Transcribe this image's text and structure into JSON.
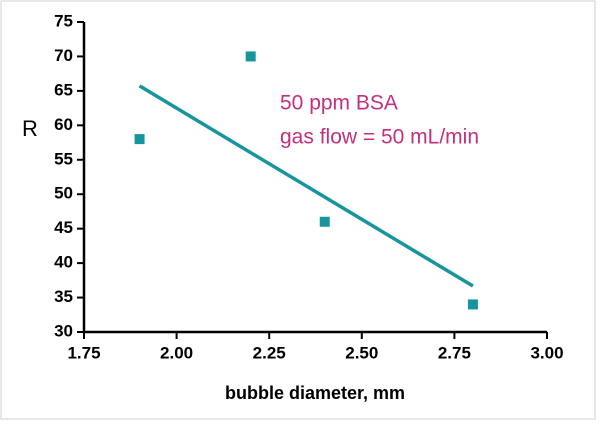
{
  "chart_data": {
    "type": "scatter",
    "x_label": "bubble diameter, mm",
    "y_label": "R",
    "annotations": [
      "50 ppm BSA",
      "gas flow = 50 mL/min"
    ],
    "xlim": [
      1.75,
      3.0
    ],
    "xticks": [
      1.75,
      {
        "value": 2,
        "label": "2.00"
      },
      2.25,
      {
        "value": 2.5,
        "label": "2.50"
      },
      2.75,
      {
        "value": 3,
        "label": "3.00"
      }
    ],
    "ylim": [
      30,
      75
    ],
    "yticks": [
      30,
      35,
      40,
      45,
      50,
      55,
      60,
      65,
      70,
      75
    ],
    "series": [
      {
        "mode": "markers",
        "color": "#16959d",
        "x": [
          1.9,
          2.2,
          2.4,
          2.8
        ],
        "values": [
          58,
          70,
          46,
          34
        ]
      },
      {
        "mode": "line",
        "color": "#16959d",
        "x": [
          1.9,
          2.8
        ],
        "values": [
          65.72,
          36.67
        ]
      }
    ]
  }
}
